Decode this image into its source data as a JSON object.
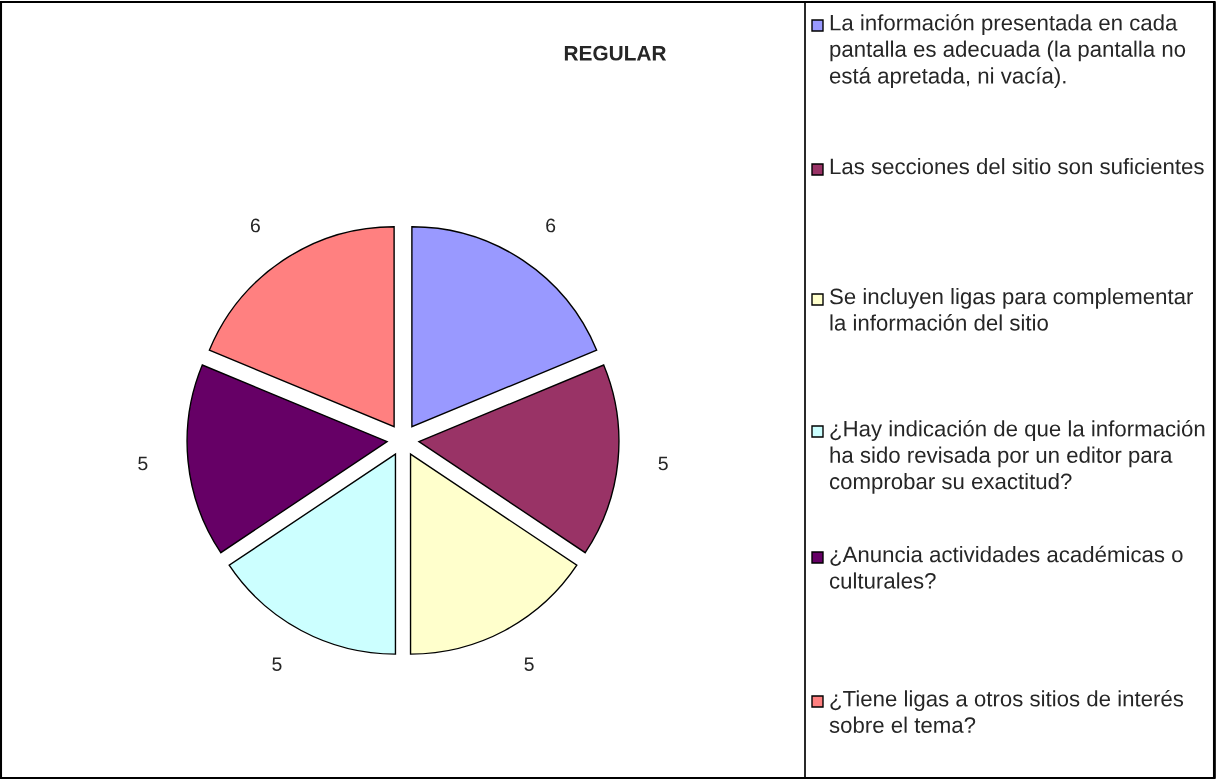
{
  "chart_data": {
    "type": "pie",
    "title": "REGULAR",
    "categories": [
      "La información presentada en cada pantalla es adecuada (la pantalla no está apretada, ni vacía).",
      "Las secciones del sitio son suficientes",
      "Se incluyen ligas para complementar la información del sitio",
      "¿Hay indicación de que la información ha sido revisada por un editor para comprobar su exactitud?",
      "¿Anuncia actividades académicas o culturales?",
      "¿Tiene ligas a otros sitios de interés sobre el tema?"
    ],
    "values": [
      6,
      5,
      5,
      5,
      5,
      6
    ],
    "colors": [
      "#9999ff",
      "#993366",
      "#ffffcc",
      "#ccffff",
      "#660066",
      "#ff8080"
    ],
    "data_labels": true,
    "legend": "right"
  }
}
